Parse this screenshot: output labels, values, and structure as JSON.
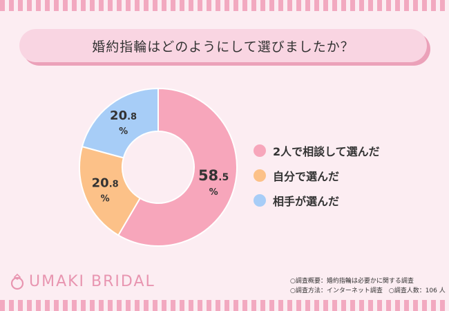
{
  "title": "婚約指輪はどのようにして選びましたか？",
  "chart_data": {
    "type": "donut",
    "categories": [
      "2人で相談して選んだ",
      "自分で選んだ",
      "相手が選んだ"
    ],
    "values": [
      58.5,
      20.8,
      20.8
    ],
    "labels": [
      {
        "main": "58",
        "decimal": ".5",
        "unit": "%"
      },
      {
        "main": "20",
        "decimal": ".8",
        "unit": "%"
      },
      {
        "main": "20",
        "decimal": ".8",
        "unit": "%"
      }
    ],
    "colors": [
      "#f7a6bb",
      "#fcc188",
      "#a7cdf7"
    ],
    "legend_position": "right",
    "start": "top",
    "direction": "clockwise"
  },
  "legend": [
    {
      "label": "2人で相談して選んだ",
      "color": "#f7a6bb"
    },
    {
      "label": "自分で選んだ",
      "color": "#fcc188"
    },
    {
      "label": "相手が選んだ",
      "color": "#a7cdf7"
    }
  ],
  "logo_text": "UMAKI BRIDAL",
  "notes": {
    "line1": "○調査概要：婚約指輪は必要かに関する調査",
    "line2": "○調査方法：インターネット調査　○調査人数：106 人"
  },
  "colors": {
    "background": "#fcedf2",
    "accent": "#e895b0",
    "title_box": "#f9d5e2"
  }
}
